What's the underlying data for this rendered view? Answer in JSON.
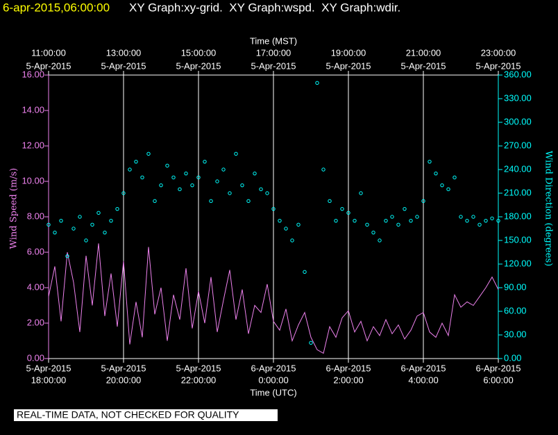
{
  "chart_data": {
    "type": "line-scatter",
    "title": "6-apr-2015,06:00:00",
    "subtitle": "XY Graph:xy-grid.  XY Graph:wspd.  XY Graph:wdir.",
    "xlabel": "Time (UTC)",
    "x2label": "Time (MST)",
    "ylabel": "Wind Speed (m/s)",
    "y2label": "Wind Direction (degrees)",
    "note": "REAL-TIME DATA, NOT CHECKED FOR QUALITY",
    "grid": true,
    "xlim": [
      "2015-04-05T18:00",
      "2015-04-06T06:00"
    ],
    "xticks": [
      {
        "value": "2015-04-05T18:00",
        "label": [
          "5-Apr-2015",
          "18:00:00"
        ]
      },
      {
        "value": "2015-04-05T20:00",
        "label": [
          "5-Apr-2015",
          "20:00:00"
        ]
      },
      {
        "value": "2015-04-05T22:00",
        "label": [
          "5-Apr-2015",
          "22:00:00"
        ]
      },
      {
        "value": "2015-04-06T00:00",
        "label": [
          "6-Apr-2015",
          "0:00:00"
        ]
      },
      {
        "value": "2015-04-06T02:00",
        "label": [
          "6-Apr-2015",
          "2:00:00"
        ]
      },
      {
        "value": "2015-04-06T04:00",
        "label": [
          "6-Apr-2015",
          "4:00:00"
        ]
      },
      {
        "value": "2015-04-06T06:00",
        "label": [
          "6-Apr-2015",
          "6:00:00"
        ]
      }
    ],
    "x2ticks": [
      {
        "value": "2015-04-05T18:00",
        "label": [
          "11:00:00",
          "5-Apr-2015"
        ]
      },
      {
        "value": "2015-04-05T20:00",
        "label": [
          "13:00:00",
          "5-Apr-2015"
        ]
      },
      {
        "value": "2015-04-05T22:00",
        "label": [
          "15:00:00",
          "5-Apr-2015"
        ]
      },
      {
        "value": "2015-04-06T00:00",
        "label": [
          "17:00:00",
          "5-Apr-2015"
        ]
      },
      {
        "value": "2015-04-06T02:00",
        "label": [
          "19:00:00",
          "5-Apr-2015"
        ]
      },
      {
        "value": "2015-04-06T04:00",
        "label": [
          "21:00:00",
          "5-Apr-2015"
        ]
      },
      {
        "value": "2015-04-06T06:00",
        "label": [
          "23:00:00",
          "5-Apr-2015"
        ]
      }
    ],
    "ylim": [
      0,
      16
    ],
    "yticks": [
      {
        "value": 0,
        "label": "0.00"
      },
      {
        "value": 2,
        "label": "2.00"
      },
      {
        "value": 4,
        "label": "4.00"
      },
      {
        "value": 6,
        "label": "6.00"
      },
      {
        "value": 8,
        "label": "8.00"
      },
      {
        "value": 10,
        "label": "10.00"
      },
      {
        "value": 12,
        "label": "12.00"
      },
      {
        "value": 14,
        "label": "14.00"
      },
      {
        "value": 16,
        "label": "16.00"
      }
    ],
    "y2lim": [
      0,
      360
    ],
    "y2ticks": [
      {
        "value": 0,
        "label": "0.00"
      },
      {
        "value": 30,
        "label": "30.00"
      },
      {
        "value": 60,
        "label": "60.00"
      },
      {
        "value": 90,
        "label": "90.00"
      },
      {
        "value": 120,
        "label": "120.00"
      },
      {
        "value": 150,
        "label": "150.00"
      },
      {
        "value": 180,
        "label": "180.00"
      },
      {
        "value": 210,
        "label": "210.00"
      },
      {
        "value": 240,
        "label": "240.00"
      },
      {
        "value": 270,
        "label": "270.00"
      },
      {
        "value": 300,
        "label": "300.00"
      },
      {
        "value": 330,
        "label": "330.00"
      },
      {
        "value": 360,
        "label": "360.00"
      }
    ],
    "x": [
      "2015-04-05T18:00",
      "2015-04-05T18:10",
      "2015-04-05T18:20",
      "2015-04-05T18:30",
      "2015-04-05T18:40",
      "2015-04-05T18:50",
      "2015-04-05T19:00",
      "2015-04-05T19:10",
      "2015-04-05T19:20",
      "2015-04-05T19:30",
      "2015-04-05T19:40",
      "2015-04-05T19:50",
      "2015-04-05T20:00",
      "2015-04-05T20:10",
      "2015-04-05T20:20",
      "2015-04-05T20:30",
      "2015-04-05T20:40",
      "2015-04-05T20:50",
      "2015-04-05T21:00",
      "2015-04-05T21:10",
      "2015-04-05T21:20",
      "2015-04-05T21:30",
      "2015-04-05T21:40",
      "2015-04-05T21:50",
      "2015-04-05T22:00",
      "2015-04-05T22:10",
      "2015-04-05T22:20",
      "2015-04-05T22:30",
      "2015-04-05T22:40",
      "2015-04-05T22:50",
      "2015-04-05T23:00",
      "2015-04-05T23:10",
      "2015-04-05T23:20",
      "2015-04-05T23:30",
      "2015-04-05T23:40",
      "2015-04-05T23:50",
      "2015-04-06T00:00",
      "2015-04-06T00:10",
      "2015-04-06T00:20",
      "2015-04-06T00:30",
      "2015-04-06T00:40",
      "2015-04-06T00:50",
      "2015-04-06T01:00",
      "2015-04-06T01:10",
      "2015-04-06T01:20",
      "2015-04-06T01:30",
      "2015-04-06T01:40",
      "2015-04-06T01:50",
      "2015-04-06T02:00",
      "2015-04-06T02:10",
      "2015-04-06T02:20",
      "2015-04-06T02:30",
      "2015-04-06T02:40",
      "2015-04-06T02:50",
      "2015-04-06T03:00",
      "2015-04-06T03:10",
      "2015-04-06T03:20",
      "2015-04-06T03:30",
      "2015-04-06T03:40",
      "2015-04-06T03:50",
      "2015-04-06T04:00",
      "2015-04-06T04:10",
      "2015-04-06T04:20",
      "2015-04-06T04:30",
      "2015-04-06T04:40",
      "2015-04-06T04:50",
      "2015-04-06T05:00",
      "2015-04-06T05:10",
      "2015-04-06T05:20",
      "2015-04-06T05:30",
      "2015-04-06T05:40",
      "2015-04-06T05:50",
      "2015-04-06T06:00"
    ],
    "series": [
      {
        "name": "wspd",
        "color": "#ee82ee",
        "values": [
          3.5,
          5.2,
          2.1,
          6.0,
          4.3,
          1.5,
          5.8,
          3.0,
          6.5,
          2.4,
          4.8,
          1.8,
          5.5,
          0.8,
          3.2,
          1.2,
          6.3,
          2.5,
          4.0,
          1.0,
          3.6,
          2.2,
          5.1,
          1.7,
          3.8,
          2.0,
          4.6,
          1.5,
          3.3,
          5.0,
          2.2,
          3.9,
          1.4,
          3.0,
          2.6,
          4.2,
          2.1,
          1.6,
          2.8,
          1.0,
          1.9,
          2.6,
          1.2,
          0.5,
          0.3,
          1.8,
          1.2,
          2.3,
          2.7,
          1.5,
          2.1,
          1.0,
          1.8,
          1.3,
          2.2,
          1.4,
          1.9,
          1.1,
          1.6,
          2.4,
          2.6,
          1.5,
          1.2,
          2.0,
          1.3,
          3.6,
          2.9,
          3.2,
          3.0,
          3.5,
          4.0,
          4.6,
          3.9
        ]
      },
      {
        "name": "wdir",
        "color": "#00ffff",
        "axis": "y2",
        "values": [
          170,
          160,
          175,
          130,
          165,
          180,
          150,
          170,
          185,
          160,
          175,
          190,
          210,
          240,
          250,
          230,
          260,
          200,
          220,
          245,
          230,
          215,
          235,
          220,
          230,
          250,
          200,
          225,
          240,
          210,
          260,
          220,
          200,
          235,
          215,
          210,
          190,
          175,
          165,
          150,
          170,
          110,
          20,
          350,
          240,
          200,
          175,
          190,
          185,
          175,
          210,
          170,
          160,
          150,
          175,
          180,
          170,
          190,
          175,
          180,
          200,
          250,
          235,
          220,
          215,
          230,
          180,
          175,
          180,
          170,
          175,
          178,
          175
        ]
      }
    ]
  }
}
